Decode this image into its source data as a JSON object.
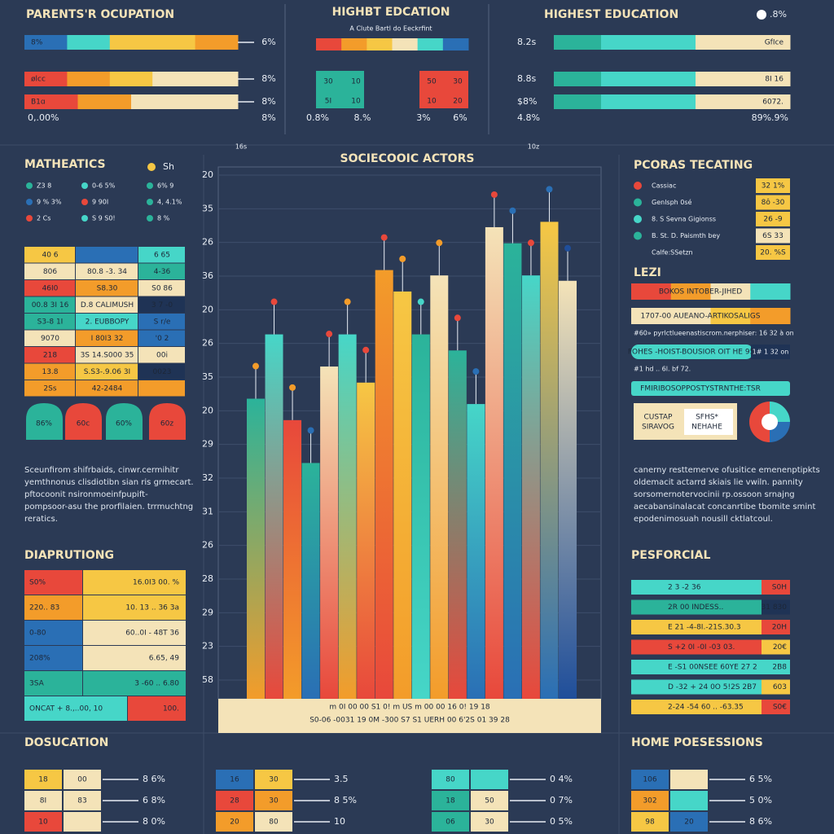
{
  "top_left": {
    "title": "PARENTS'R OCUPATION",
    "rows": [
      {
        "label": "8%",
        "value": "6%"
      },
      {
        "label": "ølcc",
        "value": "8%"
      },
      {
        "label": "B1ɑ",
        "value": "8%"
      }
    ],
    "footer_left": "0,.00%",
    "footer_right": "8%"
  },
  "top_mid": {
    "title": "HIGHBT EDCATION",
    "subtitle": "A Clute Bartl do Eeckrfint",
    "cells": [
      "30",
      "10",
      "5I",
      "10",
      "50",
      "30",
      "10",
      "20"
    ],
    "footer": [
      "0.8%",
      "8.%",
      "3%",
      "6%"
    ]
  },
  "top_right": {
    "title": "HIGHEST EDUCATION",
    "badge": ".8%",
    "rows": [
      {
        "label": "8.2s",
        "value": "GfIce"
      },
      {
        "label": "8.8s",
        "value": "8I 16"
      },
      {
        "label": "$8%",
        "value": "6072."
      }
    ],
    "footer_left": "4.8%",
    "footer_right": "89%.9%"
  },
  "math": {
    "title": "MATHEATICS",
    "legend": "Sh",
    "bullets": [
      "Z3 8",
      "0-6 5%",
      "6% 9",
      "9 % 3%",
      "9 90I",
      "4, 4.1%",
      "2 Cs",
      "S 9 S0!",
      "8 %"
    ],
    "table": [
      [
        "40 6",
        "",
        "6 65"
      ],
      [
        "806",
        "80.8 -3. 34",
        "4-36"
      ],
      [
        "46I0",
        "S8.30",
        "S0 86"
      ],
      [
        "00.8 3I 16",
        "D.8 CALIMUSH",
        "3 7 -0"
      ],
      [
        "S3-8 1I",
        "2. EUBBOPY",
        "S r/e"
      ],
      [
        "9070",
        "I 80I3 32",
        "'0 2"
      ],
      [
        "218",
        "3S 14.S000 35",
        "00i"
      ],
      [
        "13.8",
        "S.S3-.9.06 3I",
        "0023"
      ],
      [
        "2Ss",
        "42-2484",
        ""
      ]
    ],
    "badges": [
      "86%",
      "60c",
      "60%",
      "60z"
    ]
  },
  "paragraph_left": [
    "Sceunfirom shifrbaids, cinwr.cermihitr",
    "yemthnonus clisdiotibn sian ris grmecart.",
    "pftocoonit nsironmoeinfpupift-",
    "pompsoor-asu the prorfilaien. trrmuchtng",
    "reratics."
  ],
  "distrib": {
    "title": "DIAPRUTIONG",
    "rows": [
      [
        "S0%",
        "16.0I3 00. %"
      ],
      [
        "220.. 83",
        "10. 13 .. 36 3a"
      ],
      [
        "0-80",
        "60..0I - 48T 36"
      ],
      [
        "208%",
        "6.65, 49"
      ],
      [
        "3SA",
        "3 -60 .. 6.80"
      ],
      [
        "ONCAT + 8.,..00, 10",
        "100."
      ]
    ]
  },
  "center": {
    "title": "SOCIECOOIC ACTORS",
    "left_note": "16s",
    "right_note": "10z",
    "y_labels": [
      "20",
      "35",
      "26",
      "36",
      "20",
      "26",
      "35",
      "20",
      "29",
      "32",
      "31",
      "26",
      "28",
      "29",
      "23",
      "58"
    ],
    "bar_values": [
      56,
      68,
      52,
      44,
      62,
      68,
      59,
      80,
      76,
      68,
      79,
      65,
      55,
      88,
      85,
      79,
      89,
      78
    ],
    "bar_colors": [
      [
        "#2bb39a",
        "#f39c2a"
      ],
      [
        "#46d6c8",
        "#e8483b"
      ],
      [
        "#e8483b",
        "#f39c2a"
      ],
      [
        "#2bb39a",
        "#2a6fb5"
      ],
      [
        "#f4e3b8",
        "#e8483b"
      ],
      [
        "#46d6c8",
        "#f39c2a"
      ],
      [
        "#f6c744",
        "#e8483b"
      ],
      [
        "#f39c2a",
        "#e8483b"
      ],
      [
        "#f6c744",
        "#f39c2a"
      ],
      [
        "#2bb39a",
        "#46d6c8"
      ],
      [
        "#f4e3b8",
        "#f39c2a"
      ],
      [
        "#2bb39a",
        "#e8483b"
      ],
      [
        "#46d6c8",
        "#2a6fb5"
      ],
      [
        "#f4e3b8",
        "#e8483b"
      ],
      [
        "#2bb39a",
        "#2a6fb5"
      ],
      [
        "#46d6c8",
        "#e8483b"
      ],
      [
        "#f6c744",
        "#2a6fb5"
      ],
      [
        "#f4e3b8",
        "#1f4e9a"
      ]
    ],
    "x_row1": "m   0I   00   00   S1   0!   m   US   m   00   00   16   0!   19   18",
    "x_row2": "S0-06 -0031  19  0M  -300  S7  S1  UERH  00  6'2S  01  39  28"
  },
  "right_top": {
    "title": "PCORAS TECATING",
    "rows": [
      [
        "Cassiac",
        "32 1%"
      ],
      [
        "Genlsph 0sé",
        "8ô -30"
      ],
      [
        "8. S Sevna Gigionss",
        "26 -9"
      ],
      [
        "B. St. D. Paismth bey",
        "6S 33"
      ],
      [
        "Calfe:SSetzn",
        "20. %S"
      ]
    ]
  },
  "lezi": {
    "title": "LEZI",
    "lines": [
      "BOKOS INTOBER-JIHED",
      "1707-00 AUEANO-ARTIKOSALIGS",
      "#60» pyrlctlueenastiscrom.nerphiser: 16 32 à on",
      "FOHES -HOIST-BOUSIOR OIT HE 95.",
      "1# 1 32 on",
      "#1 hd .. 6l. bf 72.",
      "FMIRIBOSOPPOSTYSTRNTHE:TSR"
    ],
    "box": [
      "CUSTAP",
      "SIRAVOG",
      "SFHS*",
      "NEHAHE"
    ]
  },
  "paragraph_right": [
    "canerny resttemerve ofusitice emenenptipkts",
    "oldemacit actarrd skiais lie vwiln. pannity",
    "sorsomernotervocinii rp.ossoon srnajng",
    "aecabansinalacat concanrtibe tbomite smint",
    "epodenimosuah nousill cktlatcoul."
  ],
  "personal": {
    "title": "PESFORCIAL",
    "rows": [
      [
        "2 3 -2 36",
        "S0H"
      ],
      [
        "2R 00 INDESS..",
        "31 830"
      ],
      [
        "E 21 -4-8I.-21S.30.3",
        "20H"
      ],
      [
        "S +2 0I -0I -03 03.",
        "20€"
      ],
      [
        "E -S1 00NSEE 60YE 27 2",
        "2B8"
      ],
      [
        "D -32 + 24 0O 5!2S 2B7",
        "603"
      ],
      [
        "2-24 -54 60 .. -63.35",
        "S0€"
      ]
    ]
  },
  "bottom": {
    "left_title": "DOSUCATION",
    "right_title": "HOME POESESSIONS",
    "groups": [
      {
        "cells": [
          "18",
          "00",
          "8I",
          "83",
          "10",
          ""
        ],
        "notes": [
          "8 6%",
          "6 8%",
          "8 0%"
        ]
      },
      {
        "cells": [
          "16",
          "30",
          "28",
          "30",
          "20",
          "80"
        ],
        "notes": [
          "3.5",
          "8 5%",
          "10"
        ]
      },
      {
        "cells": [
          "80",
          "",
          "18",
          "50",
          "06",
          "30"
        ],
        "notes": [
          "0 4%",
          "0 7%",
          "0 5%"
        ]
      },
      {
        "cells": [
          "106",
          "",
          "302",
          "",
          "98",
          "20"
        ],
        "notes": [
          "6 5%",
          "5 0%",
          "8 6%"
        ]
      }
    ]
  }
}
